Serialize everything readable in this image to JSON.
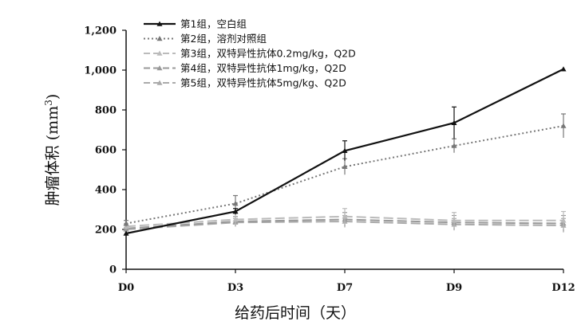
{
  "chart_data": {
    "type": "line",
    "xlabel": "给药后时间（天）",
    "ylabel_main": "肿瘤体积 (mm",
    "ylabel_sup": "3",
    "ylabel_close": ")",
    "categories": [
      "D0",
      "D3",
      "D7",
      "D9",
      "D12"
    ],
    "ylim": [
      0,
      1200
    ],
    "yticks": [
      0,
      200,
      400,
      600,
      800,
      1000,
      1200
    ],
    "ytick_labels": [
      "0",
      "200",
      "400",
      "600",
      "800",
      "1,000",
      "1,200"
    ],
    "grid": false,
    "legend_position": "top-left",
    "series": [
      {
        "name": "第1组，空白组",
        "values": [
          180,
          290,
          595,
          735,
          1005
        ],
        "errors": [
          0,
          15,
          50,
          80,
          0
        ],
        "color": "#111111",
        "style": "solid",
        "marker": "triangle"
      },
      {
        "name": "第2组，溶剂对照组",
        "values": [
          230,
          330,
          515,
          620,
          720
        ],
        "errors": [
          15,
          40,
          40,
          35,
          60
        ],
        "color": "#777777",
        "style": "dotted",
        "marker": "triangle"
      },
      {
        "name": "第3组，双特异性抗体0.2mg/kg，Q2D",
        "values": [
          215,
          250,
          265,
          245,
          245
        ],
        "errors": [
          15,
          30,
          40,
          40,
          45
        ],
        "color": "#bbbbbb",
        "style": "dashed",
        "marker": "triangle"
      },
      {
        "name": "第4组，双特异性抗体1mg/kg，Q2D",
        "values": [
          205,
          240,
          250,
          235,
          230
        ],
        "errors": [
          15,
          25,
          35,
          35,
          40
        ],
        "color": "#999999",
        "style": "dashed",
        "marker": "triangle"
      },
      {
        "name": "第5组，双特异性抗体5mg/kg、Q2D",
        "values": [
          200,
          235,
          240,
          225,
          220
        ],
        "errors": [
          10,
          20,
          30,
          30,
          35
        ],
        "color": "#aaaaaa",
        "style": "dashed",
        "marker": "triangle"
      }
    ]
  }
}
